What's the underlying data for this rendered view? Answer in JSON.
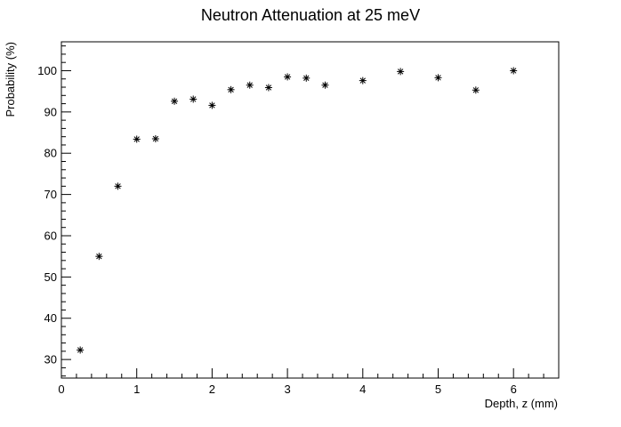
{
  "chart_data": {
    "type": "scatter",
    "title": "Neutron Attenuation at 25 meV",
    "xlabel": "Depth, z (mm)",
    "ylabel": "Probability (%)",
    "xlim": [
      0,
      6.6
    ],
    "ylim": [
      25.5,
      107
    ],
    "x_ticks": [
      0,
      1,
      2,
      3,
      4,
      5,
      6
    ],
    "y_ticks": [
      30,
      40,
      50,
      60,
      70,
      80,
      90,
      100
    ],
    "x_tick_labels": [
      "0",
      "1",
      "2",
      "3",
      "4",
      "5",
      "6"
    ],
    "y_tick_labels": [
      "30",
      "40",
      "50",
      "60",
      "70",
      "80",
      "90",
      "100"
    ],
    "marker": "asterisk",
    "grid": false,
    "series": [
      {
        "x": [
          0.25,
          0.5,
          0.75,
          1.0,
          1.25,
          1.5,
          1.75,
          2.0,
          2.25,
          2.5,
          2.75,
          3.0,
          3.25,
          3.5,
          4.0,
          4.5,
          5.0,
          5.5,
          6.0
        ],
        "y": [
          32.3,
          55.0,
          72.0,
          83.4,
          83.5,
          92.6,
          93.1,
          91.6,
          95.4,
          96.5,
          95.9,
          98.5,
          98.2,
          96.5,
          97.6,
          99.8,
          98.3,
          95.3,
          100.0
        ]
      }
    ]
  }
}
